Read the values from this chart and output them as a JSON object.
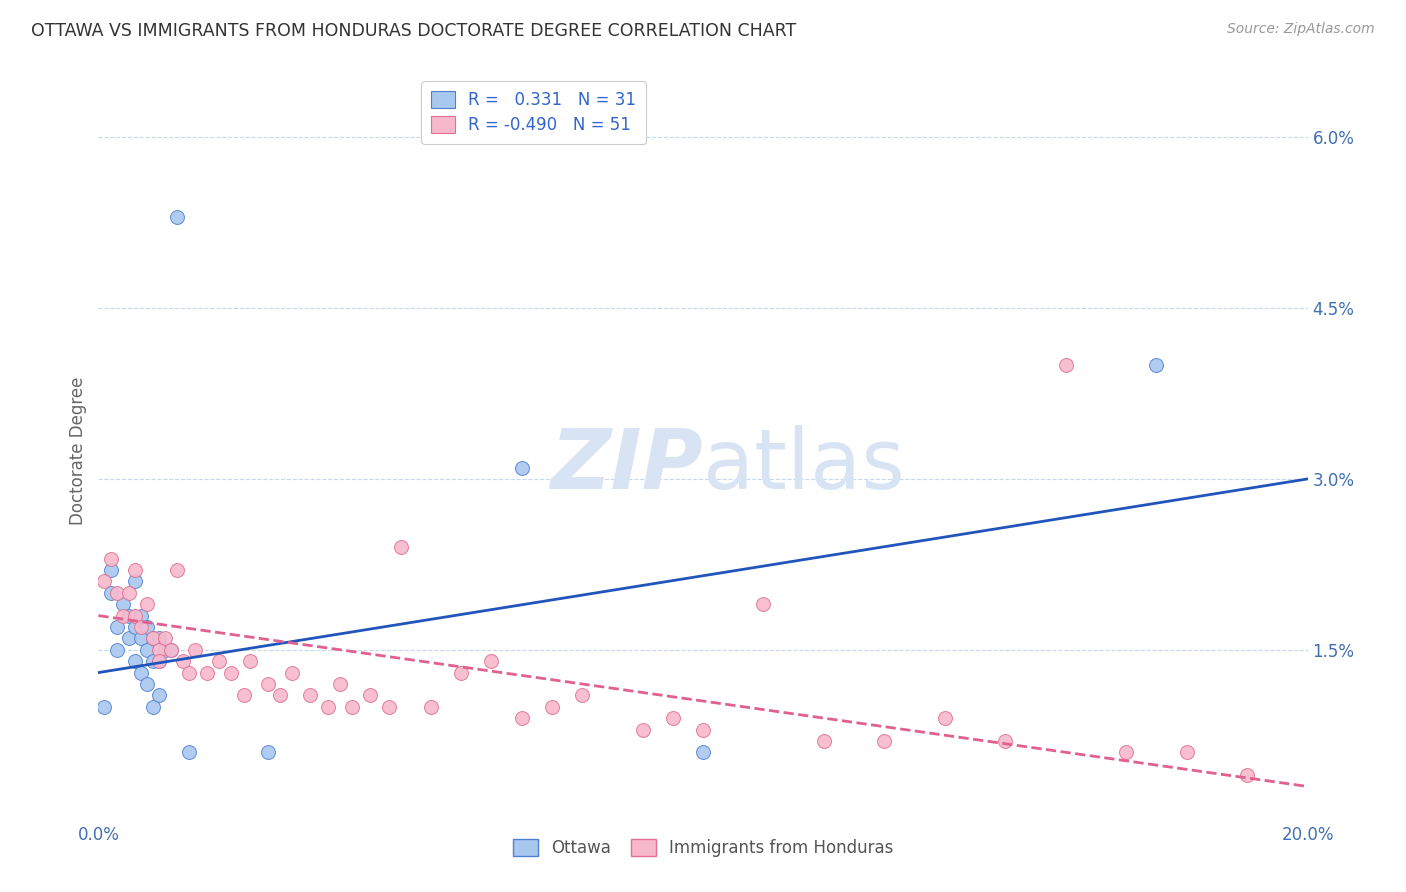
{
  "title": "OTTAWA VS IMMIGRANTS FROM HONDURAS DOCTORATE DEGREE CORRELATION CHART",
  "source": "Source: ZipAtlas.com",
  "ylabel": "Doctorate Degree",
  "xlim": [
    0.0,
    0.2
  ],
  "ylim": [
    0.0,
    0.065
  ],
  "xticks": [
    0.0,
    0.05,
    0.1,
    0.15,
    0.2
  ],
  "yticks": [
    0.0,
    0.015,
    0.03,
    0.045,
    0.06
  ],
  "ytick_labels": [
    "",
    "1.5%",
    "3.0%",
    "4.5%",
    "6.0%"
  ],
  "ottawa_R": 0.331,
  "ottawa_N": 31,
  "honduras_R": -0.49,
  "honduras_N": 51,
  "ottawa_color": "#A8C8F0",
  "ottawa_edge_color": "#5080D0",
  "ottawa_line_color": "#2255BB",
  "honduras_color": "#F8B8CC",
  "honduras_edge_color": "#E07090",
  "honduras_line_color": "#E06090",
  "watermark_color": "#D8E4F4",
  "background_color": "#FFFFFF",
  "grid_color": "#C8D8EC",
  "title_color": "#333333",
  "source_color": "#999999",
  "tick_color": "#4070B0",
  "ylabel_color": "#666666",
  "legend_text_color": "#3366CC",
  "bottom_legend_color": "#555555",
  "ottawa_x": [
    0.001,
    0.002,
    0.002,
    0.003,
    0.003,
    0.004,
    0.005,
    0.005,
    0.006,
    0.006,
    0.006,
    0.007,
    0.007,
    0.007,
    0.008,
    0.008,
    0.008,
    0.009,
    0.009,
    0.009,
    0.01,
    0.01,
    0.01,
    0.011,
    0.012,
    0.013,
    0.015,
    0.028,
    0.07,
    0.1,
    0.175
  ],
  "ottawa_y": [
    0.01,
    0.022,
    0.02,
    0.017,
    0.015,
    0.019,
    0.018,
    0.016,
    0.021,
    0.017,
    0.014,
    0.018,
    0.016,
    0.013,
    0.017,
    0.015,
    0.012,
    0.016,
    0.014,
    0.01,
    0.016,
    0.014,
    0.011,
    0.015,
    0.015,
    0.053,
    0.006,
    0.006,
    0.031,
    0.006,
    0.04
  ],
  "honduras_x": [
    0.001,
    0.002,
    0.003,
    0.004,
    0.005,
    0.006,
    0.006,
    0.007,
    0.008,
    0.009,
    0.01,
    0.01,
    0.011,
    0.012,
    0.013,
    0.014,
    0.015,
    0.016,
    0.018,
    0.02,
    0.022,
    0.024,
    0.025,
    0.028,
    0.03,
    0.032,
    0.035,
    0.038,
    0.04,
    0.042,
    0.045,
    0.048,
    0.05,
    0.055,
    0.06,
    0.065,
    0.07,
    0.075,
    0.08,
    0.09,
    0.095,
    0.1,
    0.11,
    0.12,
    0.13,
    0.14,
    0.15,
    0.16,
    0.17,
    0.18,
    0.19
  ],
  "honduras_y": [
    0.021,
    0.023,
    0.02,
    0.018,
    0.02,
    0.022,
    0.018,
    0.017,
    0.019,
    0.016,
    0.015,
    0.014,
    0.016,
    0.015,
    0.022,
    0.014,
    0.013,
    0.015,
    0.013,
    0.014,
    0.013,
    0.011,
    0.014,
    0.012,
    0.011,
    0.013,
    0.011,
    0.01,
    0.012,
    0.01,
    0.011,
    0.01,
    0.024,
    0.01,
    0.013,
    0.014,
    0.009,
    0.01,
    0.011,
    0.008,
    0.009,
    0.008,
    0.019,
    0.007,
    0.007,
    0.009,
    0.007,
    0.04,
    0.006,
    0.006,
    0.004
  ],
  "blue_line_x": [
    0.0,
    0.2
  ],
  "blue_line_y": [
    0.013,
    0.03
  ],
  "pink_line_x": [
    0.0,
    0.2
  ],
  "pink_line_y": [
    0.018,
    0.003
  ]
}
